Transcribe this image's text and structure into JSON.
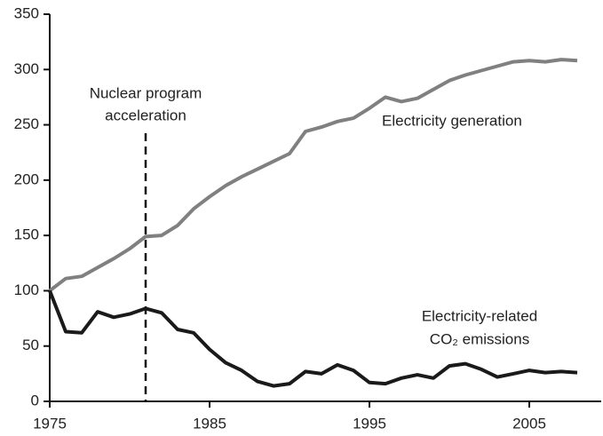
{
  "chart_data": {
    "type": "line",
    "x": [
      1975,
      1976,
      1977,
      1978,
      1979,
      1980,
      1981,
      1982,
      1983,
      1984,
      1985,
      1986,
      1987,
      1988,
      1989,
      1990,
      1991,
      1992,
      1993,
      1994,
      1995,
      1996,
      1997,
      1998,
      1999,
      2000,
      2001,
      2002,
      2003,
      2004,
      2005,
      2006,
      2007,
      2008
    ],
    "series": [
      {
        "name": "Electricity generation",
        "color": "#808080",
        "values": [
          100,
          111,
          113,
          121,
          129,
          138,
          149,
          150,
          159,
          174,
          185,
          195,
          203,
          210,
          217,
          224,
          244,
          248,
          253,
          256,
          265,
          275,
          271,
          274,
          282,
          290,
          295,
          299,
          303,
          307,
          308,
          307,
          309,
          308
        ]
      },
      {
        "name": "Electricity-related CO₂ emissions",
        "color": "#1a1a1a",
        "values": [
          100,
          63,
          62,
          81,
          76,
          79,
          84,
          80,
          65,
          62,
          47,
          35,
          28,
          18,
          14,
          16,
          27,
          25,
          33,
          28,
          17,
          16,
          21,
          24,
          21,
          32,
          34,
          29,
          22,
          25,
          28,
          26,
          27,
          26
        ]
      }
    ],
    "annotation": {
      "lines": [
        "Nuclear program",
        "acceleration"
      ],
      "x": 1981
    },
    "series_labels": [
      [
        "Electricity generation"
      ],
      [
        "Electricity-related",
        "CO₂ emissions"
      ]
    ],
    "xlim": [
      1975,
      2009.5
    ],
    "xticks": [
      1975,
      1985,
      1995,
      2005
    ],
    "ylim": [
      0,
      350
    ],
    "yticks": [
      0,
      50,
      100,
      150,
      200,
      250,
      300,
      350
    ],
    "grid": false
  }
}
